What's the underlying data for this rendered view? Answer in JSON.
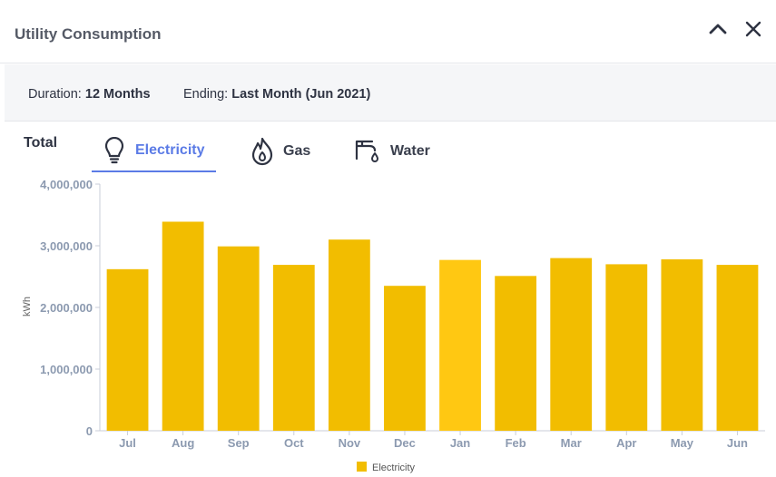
{
  "header": {
    "title": "Utility Consumption",
    "collapse_icon": "chevron-up-icon",
    "close_icon": "close-icon"
  },
  "filters": {
    "duration_label": "Duration:",
    "duration_value": "12 Months",
    "ending_label": "Ending:",
    "ending_value": "Last Month (Jun 2021)"
  },
  "tabs": {
    "total_label": "Total",
    "items": [
      {
        "label": "Electricity",
        "icon": "lightbulb-icon",
        "active": true
      },
      {
        "label": "Gas",
        "icon": "flame-icon",
        "active": false
      },
      {
        "label": "Water",
        "icon": "faucet-icon",
        "active": false
      }
    ]
  },
  "colors": {
    "bar": "#f2bd00",
    "bar_highlight": "#ffc812",
    "accent": "#5b7be6"
  },
  "chart_data": {
    "type": "bar",
    "categories": [
      "Jul",
      "Aug",
      "Sep",
      "Oct",
      "Nov",
      "Dec",
      "Jan",
      "Feb",
      "Mar",
      "Apr",
      "May",
      "Jun"
    ],
    "series": [
      {
        "name": "Electricity",
        "values": [
          2620000,
          3390000,
          2990000,
          2690000,
          3100000,
          2350000,
          2770000,
          2510000,
          2800000,
          2700000,
          2780000,
          2690000
        ]
      }
    ],
    "highlight_index": 6,
    "ylabel": "kWh",
    "ylim": [
      0,
      4000000
    ],
    "yticks": [
      0,
      1000000,
      2000000,
      3000000,
      4000000
    ],
    "ytick_labels": [
      "0",
      "1,000,000",
      "2,000,000",
      "3,000,000",
      "4,000,000"
    ],
    "grid": false,
    "legend": "bottom-center"
  }
}
